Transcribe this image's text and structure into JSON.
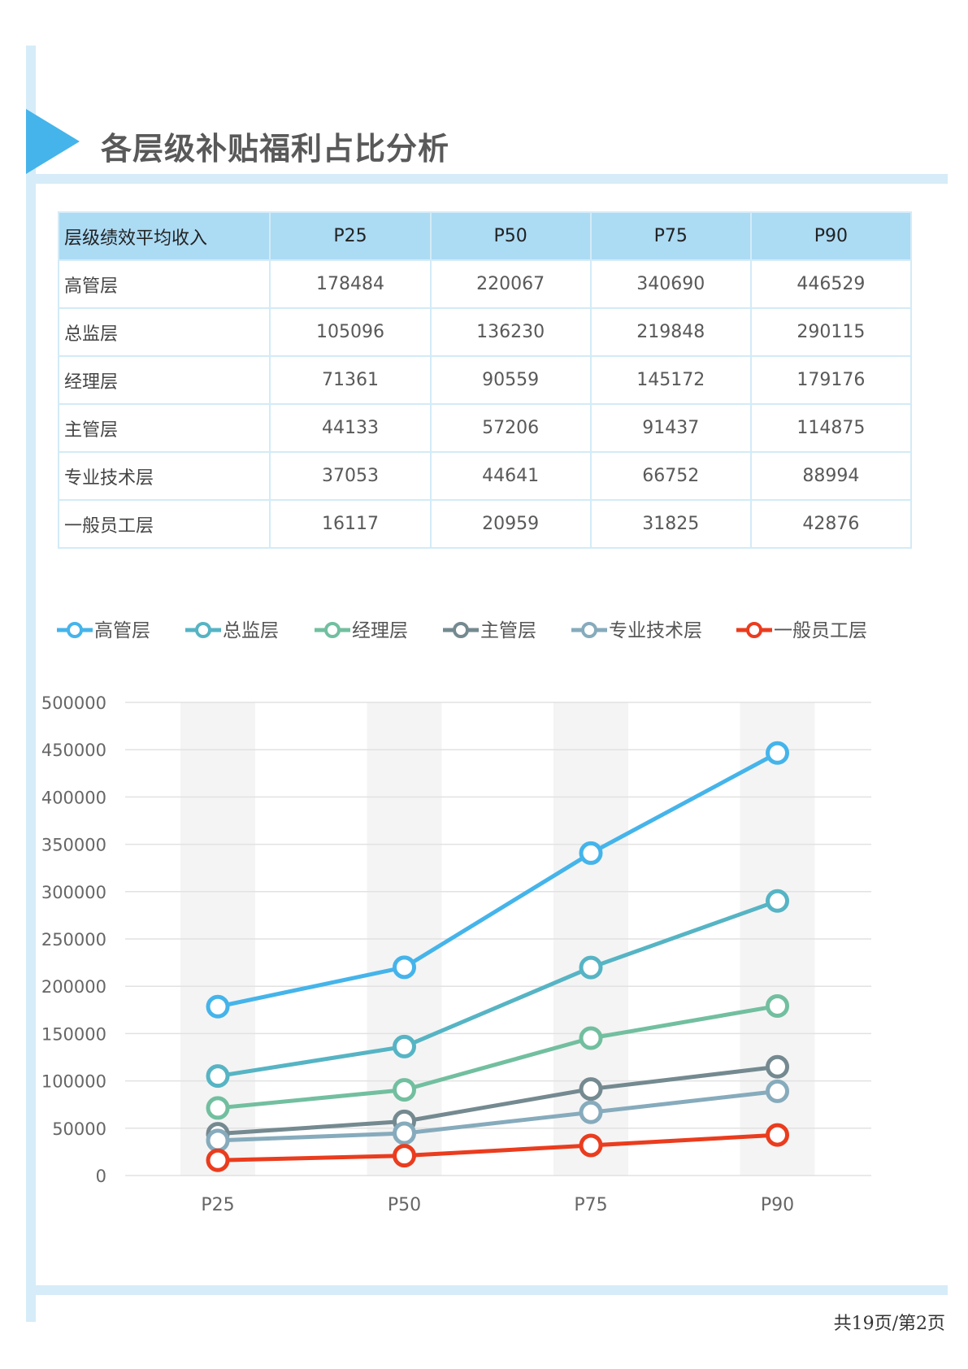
{
  "page": {
    "title": "各层级补贴福利占比分析",
    "footer": "共19页/第2页"
  },
  "table": {
    "headers": [
      "层级绩效平均收入",
      "P25",
      "P50",
      "P75",
      "P90"
    ],
    "rows": [
      [
        "高管层",
        "178484",
        "220067",
        "340690",
        "446529"
      ],
      [
        "总监层",
        "105096",
        "136230",
        "219848",
        "290115"
      ],
      [
        "经理层",
        "71361",
        "90559",
        "145172",
        "179176"
      ],
      [
        "主管层",
        "44133",
        "57206",
        "91437",
        "114875"
      ],
      [
        "专业技术层",
        "37053",
        "44641",
        "66752",
        "88994"
      ],
      [
        "一般员工层",
        "16117",
        "20959",
        "31825",
        "42876"
      ]
    ]
  },
  "chart_data": {
    "type": "line",
    "title": "",
    "xlabel": "",
    "ylabel": "",
    "categories": [
      "P25",
      "P50",
      "P75",
      "P90"
    ],
    "ylim": [
      0,
      500000
    ],
    "yticks": [
      0,
      50000,
      100000,
      150000,
      200000,
      250000,
      300000,
      350000,
      400000,
      450000,
      500000
    ],
    "grid": true,
    "legend": "top",
    "series": [
      {
        "name": "高管层",
        "values": [
          178484,
          220067,
          340690,
          446529
        ],
        "color": "#45b4ea"
      },
      {
        "name": "总监层",
        "values": [
          105096,
          136230,
          219848,
          290115
        ],
        "color": "#56b4c4"
      },
      {
        "name": "经理层",
        "values": [
          71361,
          90559,
          145172,
          179176
        ],
        "color": "#72bfa0"
      },
      {
        "name": "主管层",
        "values": [
          44133,
          57206,
          91437,
          114875
        ],
        "color": "#748a90"
      },
      {
        "name": "专业技术层",
        "values": [
          37053,
          44641,
          66752,
          88994
        ],
        "color": "#86abbc"
      },
      {
        "name": "一般员工层",
        "values": [
          16117,
          20959,
          31825,
          42876
        ],
        "color": "#ea3c1e"
      }
    ]
  }
}
